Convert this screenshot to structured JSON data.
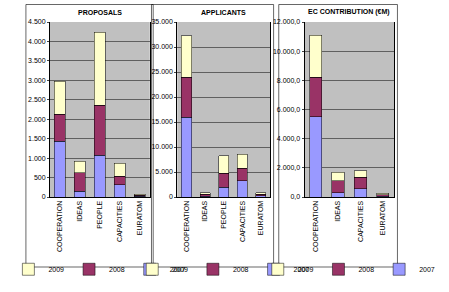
{
  "chart_data": [
    {
      "type": "bar",
      "title": "PROPOSALS",
      "stacked": true,
      "grid": true,
      "legend": "bottom",
      "categories": [
        "COOPERATION",
        "IDEAS",
        "PEOPLE",
        "CAPACITIES",
        "EURATOM"
      ],
      "series": [
        {
          "name": "2007",
          "color": "#9999FF",
          "values": [
            1430,
            150,
            1080,
            310,
            20
          ]
        },
        {
          "name": "2008",
          "color": "#993366",
          "values": [
            700,
            470,
            1280,
            230,
            25
          ]
        },
        {
          "name": "2009",
          "color": "#FFFFCC",
          "values": [
            850,
            300,
            1880,
            330,
            30
          ]
        }
      ],
      "ylim": [
        0,
        4500
      ],
      "yticks": [
        0,
        500,
        {
          "value": 1000,
          "label": "1.000"
        },
        {
          "value": 1500,
          "label": "1.500"
        },
        {
          "value": 2000,
          "label": "2.000"
        },
        {
          "value": 2500,
          "label": "2.500"
        },
        {
          "value": 3000,
          "label": "3.000"
        },
        {
          "value": 3500,
          "label": "3.500"
        },
        {
          "value": 4000,
          "label": "4.000"
        },
        {
          "value": 4500,
          "label": "4.500"
        }
      ]
    },
    {
      "type": "bar",
      "title": "APPLICANTS",
      "stacked": true,
      "grid": true,
      "legend": "bottom",
      "categories": [
        "COOPERATION",
        "IDEAS",
        "PEOPLE",
        "CAPACITIES",
        "EURATOM"
      ],
      "series": [
        {
          "name": "2007",
          "color": "#9999FF",
          "values": [
            16000,
            200,
            2000,
            3300,
            300
          ]
        },
        {
          "name": "2008",
          "color": "#993366",
          "values": [
            8000,
            400,
            2800,
            2500,
            300
          ]
        },
        {
          "name": "2009",
          "color": "#FFFFCC",
          "values": [
            8300,
            300,
            3500,
            2800,
            300
          ]
        }
      ],
      "ylim": [
        0,
        35000
      ],
      "yticks": [
        0,
        {
          "value": 5000,
          "label": "5.000"
        },
        {
          "value": 10000,
          "label": "10.000"
        },
        {
          "value": 15000,
          "label": "15.000"
        },
        {
          "value": 20000,
          "label": "20.000"
        },
        {
          "value": 25000,
          "label": "25.000"
        },
        {
          "value": 30000,
          "label": "30.000"
        },
        {
          "value": 35000,
          "label": "35.000"
        }
      ]
    },
    {
      "type": "bar",
      "title": "EC CONTRIBUTION (€M)",
      "stacked": true,
      "grid": true,
      "legend": "bottom",
      "categories": [
        "COOPERATION",
        "IDEAS",
        "CAPACITIES",
        "EURATOM"
      ],
      "series": [
        {
          "name": "2007",
          "color": "#9999FF",
          "values": [
            5500,
            300,
            550,
            50
          ]
        },
        {
          "name": "2008",
          "color": "#993366",
          "values": [
            2700,
            800,
            800,
            100
          ]
        },
        {
          "name": "2009",
          "color": "#FFFFCC",
          "values": [
            2900,
            600,
            450,
            100
          ]
        }
      ],
      "ylim": [
        0,
        12000
      ],
      "yticks": [
        {
          "value": 0,
          "label": "0,0"
        },
        {
          "value": 2000,
          "label": "2.000,0"
        },
        {
          "value": 4000,
          "label": "4.000,0"
        },
        {
          "value": 6000,
          "label": "6.000,0"
        },
        {
          "value": 8000,
          "label": "8.000,0"
        },
        {
          "value": 10000,
          "label": "10.000,0"
        },
        {
          "value": 12000,
          "label": "12.000,0"
        }
      ]
    }
  ]
}
